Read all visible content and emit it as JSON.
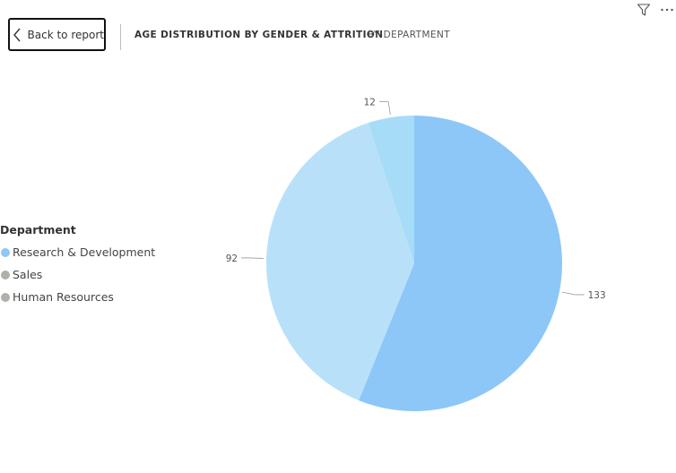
{
  "header": {
    "back_label": "Back to report",
    "tabs": [
      {
        "label": "AGE DISTRIBUTION BY GENDER & ATTRITION",
        "active": true
      },
      {
        "label": "BY DEPARTMENT",
        "active": false
      }
    ]
  },
  "icons": {
    "back": "chevron-left-icon",
    "filter": "filter-icon",
    "more": "more-options-icon"
  },
  "legend": {
    "title": "Department",
    "items": [
      {
        "label": "Research & Development",
        "color": "#8dc8f7"
      },
      {
        "label": "Sales",
        "color": "#b3afa9"
      },
      {
        "label": "Human Resources",
        "color": "#b3afa9"
      }
    ]
  },
  "chart_data": {
    "type": "pie",
    "title": "",
    "slices": [
      {
        "label": "Research & Development",
        "value": 133,
        "color": "#8cc7f7"
      },
      {
        "label": "Sales",
        "value": 92,
        "color": "#b8e1f9"
      },
      {
        "label": "Human Resources",
        "value": 12,
        "color": "#a7dcf9"
      }
    ],
    "data_labels": [
      "133",
      "92",
      "12"
    ],
    "legend_position": "left"
  }
}
